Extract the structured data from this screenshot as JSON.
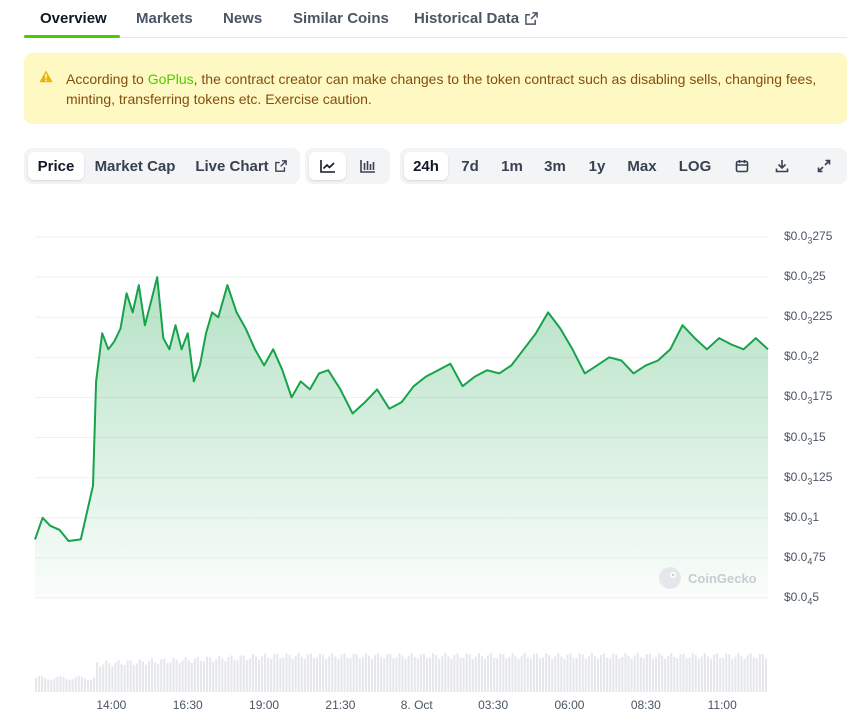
{
  "tabs": [
    {
      "label": "Overview",
      "active": true
    },
    {
      "label": "Markets"
    },
    {
      "label": "News"
    },
    {
      "label": "Similar Coins"
    },
    {
      "label": "Historical Data",
      "external": true
    }
  ],
  "warning": {
    "prefix": "According to ",
    "link": "GoPlus",
    "text": ", the contract creator can make changes to the token contract such as disabling sells, changing fees, minting, transferring tokens etc. Exercise caution."
  },
  "toolbar": {
    "metric_tabs": [
      {
        "label": "Price",
        "selected": true
      },
      {
        "label": "Market Cap"
      },
      {
        "label": "Live Chart",
        "external": true
      }
    ],
    "chart_types": [
      {
        "icon": "line-chart-icon",
        "selected": true
      },
      {
        "icon": "ohlc-chart-icon"
      }
    ],
    "ranges": [
      {
        "label": "24h",
        "selected": true
      },
      {
        "label": "7d"
      },
      {
        "label": "1m"
      },
      {
        "label": "3m"
      },
      {
        "label": "1y"
      },
      {
        "label": "Max"
      },
      {
        "label": "LOG"
      }
    ],
    "actions": [
      "calendar-icon",
      "download-icon",
      "fullscreen-icon"
    ]
  },
  "colors": {
    "accent": "#4bcc00",
    "line": "#16a34a",
    "warning_bg": "#fef9c3",
    "warning_text": "#854d0e"
  },
  "watermark": "CoinGecko",
  "chart_data": {
    "type": "area",
    "y_ticks": [
      {
        "prefix": "$0.0",
        "sub": "3",
        "rest": "275",
        "value": 0.000275
      },
      {
        "prefix": "$0.0",
        "sub": "3",
        "rest": "25",
        "value": 0.00025
      },
      {
        "prefix": "$0.0",
        "sub": "3",
        "rest": "225",
        "value": 0.000225
      },
      {
        "prefix": "$0.0",
        "sub": "3",
        "rest": "2",
        "value": 0.0002
      },
      {
        "prefix": "$0.0",
        "sub": "3",
        "rest": "175",
        "value": 0.000175
      },
      {
        "prefix": "$0.0",
        "sub": "3",
        "rest": "15",
        "value": 0.00015
      },
      {
        "prefix": "$0.0",
        "sub": "3",
        "rest": "125",
        "value": 0.000125
      },
      {
        "prefix": "$0.0",
        "sub": "3",
        "rest": "1",
        "value": 0.0001
      },
      {
        "prefix": "$0.0",
        "sub": "4",
        "rest": "75",
        "value": 7.5e-05
      },
      {
        "prefix": "$0.0",
        "sub": "4",
        "rest": "5",
        "value": 5e-05
      }
    ],
    "ylim": [
      5e-05,
      0.000275
    ],
    "x_ticks": [
      "14:00",
      "16:30",
      "19:00",
      "21:30",
      "8. Oct",
      "03:30",
      "06:00",
      "08:30",
      "11:00"
    ],
    "x_tick_hours": [
      2.5,
      5,
      7.5,
      10,
      12.5,
      15,
      17.5,
      20,
      22.5
    ],
    "xlim_hours": [
      0,
      24
    ],
    "price_hours": [
      0,
      0.25,
      0.5,
      0.8,
      1.1,
      1.5,
      1.9,
      2.0,
      2.2,
      2.4,
      2.6,
      2.8,
      3.0,
      3.2,
      3.4,
      3.6,
      3.8,
      4.0,
      4.2,
      4.4,
      4.6,
      4.8,
      5.0,
      5.2,
      5.4,
      5.6,
      5.8,
      6.0,
      6.3,
      6.6,
      6.9,
      7.2,
      7.5,
      7.8,
      8.1,
      8.4,
      8.7,
      9.0,
      9.3,
      9.6,
      10.0,
      10.4,
      10.8,
      11.2,
      11.6,
      12.0,
      12.4,
      12.8,
      13.2,
      13.6,
      14.0,
      14.4,
      14.8,
      15.2,
      15.6,
      16.0,
      16.4,
      16.8,
      17.2,
      17.6,
      18.0,
      18.4,
      18.8,
      19.2,
      19.6,
      20.0,
      20.4,
      20.8,
      21.2,
      21.6,
      22.0,
      22.4,
      22.8,
      23.2,
      23.6,
      24.0
    ],
    "prices": [
      8.65e-05,
      0.0001,
      9.5e-05,
      9.25e-05,
      8.55e-05,
      8.65e-05,
      0.00012,
      0.000185,
      0.000215,
      0.000205,
      0.00021,
      0.000218,
      0.00024,
      0.000228,
      0.000245,
      0.00022,
      0.000235,
      0.00025,
      0.000212,
      0.000205,
      0.00022,
      0.000205,
      0.000215,
      0.000185,
      0.000195,
      0.000215,
      0.000228,
      0.000225,
      0.000245,
      0.000228,
      0.000218,
      0.000205,
      0.000195,
      0.000205,
      0.000192,
      0.000175,
      0.000185,
      0.00018,
      0.00019,
      0.000192,
      0.00018,
      0.000165,
      0.000172,
      0.00018,
      0.000168,
      0.000172,
      0.000182,
      0.000188,
      0.000192,
      0.000196,
      0.000182,
      0.000188,
      0.000192,
      0.00019,
      0.000195,
      0.000205,
      0.000215,
      0.000228,
      0.000218,
      0.000205,
      0.00019,
      0.000195,
      0.0002,
      0.000198,
      0.00019,
      0.000195,
      0.000198,
      0.000205,
      0.00022,
      0.000212,
      0.000205,
      0.000212,
      0.000208,
      0.000205,
      0.000212,
      0.000205
    ]
  }
}
